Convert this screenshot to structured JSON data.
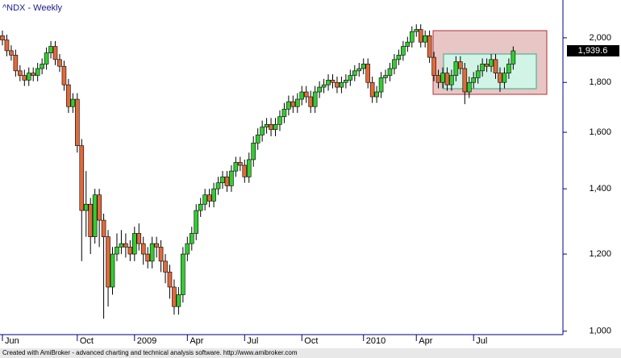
{
  "chart_data": {
    "type": "candlestick",
    "title": "^NDX - Weekly",
    "footer": "Created with AmiBroker - advanced charting and technical analysis software. http://www.amibroker.com",
    "last_price_label": "1,939.6",
    "up_color": "#33cc33",
    "down_color": "#e06a3a",
    "log_scale": true,
    "ylim": [
      992,
      2187
    ],
    "yticks": [
      {
        "value": 1000,
        "label": "1,000"
      },
      {
        "value": 1200,
        "label": "1,200"
      },
      {
        "value": 1400,
        "label": "1,400"
      },
      {
        "value": 1600,
        "label": "1,600"
      },
      {
        "value": 1800,
        "label": "1,800"
      },
      {
        "value": 2000,
        "label": "2,000"
      }
    ],
    "categories": [
      "Jun",
      null,
      null,
      null,
      null,
      null,
      null,
      null,
      null,
      null,
      null,
      null,
      null,
      null,
      null,
      null,
      null,
      "Oct",
      null,
      null,
      null,
      null,
      null,
      null,
      null,
      null,
      null,
      null,
      null,
      null,
      "2009",
      null,
      null,
      null,
      null,
      null,
      null,
      null,
      null,
      null,
      null,
      null,
      "Apr",
      null,
      null,
      null,
      null,
      null,
      null,
      null,
      null,
      null,
      null,
      null,
      null,
      "Jul",
      null,
      null,
      null,
      null,
      null,
      null,
      null,
      null,
      null,
      null,
      null,
      null,
      "Oct",
      null,
      null,
      null,
      null,
      null,
      null,
      null,
      null,
      null,
      null,
      null,
      null,
      null,
      "2010",
      null,
      null,
      null,
      null,
      null,
      null,
      null,
      null,
      null,
      null,
      null,
      "Apr",
      null,
      null,
      null,
      null,
      null,
      null,
      null,
      null,
      null,
      null,
      null,
      null,
      "Jul",
      null,
      null,
      null,
      null,
      null,
      null,
      null,
      null,
      null
    ],
    "open": [
      2010,
      1990,
      1940,
      1920,
      1850,
      1830,
      1810,
      1840,
      1830,
      1860,
      1880,
      1930,
      1960,
      1900,
      1870,
      1790,
      1700,
      1730,
      1550,
      1330,
      1350,
      1250,
      1380,
      1300,
      1250,
      1110,
      1200,
      1220,
      1230,
      1220,
      1200,
      1260,
      1230,
      1200,
      1180,
      1230,
      1220,
      1180,
      1150,
      1110,
      1060,
      1090,
      1200,
      1230,
      1260,
      1330,
      1350,
      1380,
      1360,
      1400,
      1420,
      1440,
      1410,
      1460,
      1490,
      1480,
      1440,
      1500,
      1560,
      1590,
      1620,
      1630,
      1610,
      1630,
      1660,
      1690,
      1720,
      1700,
      1730,
      1760,
      1740,
      1700,
      1760,
      1780,
      1790,
      1810,
      1800,
      1780,
      1800,
      1810,
      1830,
      1850,
      1860,
      1880,
      1800,
      1740,
      1760,
      1820,
      1830,
      1860,
      1900,
      1920,
      1960,
      1980,
      2030,
      2040,
      1980,
      2010,
      1910,
      1830,
      1800,
      1840,
      1790,
      1830,
      1890,
      1860,
      1760,
      1800,
      1820,
      1850,
      1880,
      1870,
      1900,
      1840,
      1800,
      1840,
      1880
    ],
    "high": [
      2035,
      2015,
      1965,
      1945,
      1875,
      1855,
      1865,
      1865,
      1885,
      1905,
      1955,
      1985,
      1985,
      1925,
      1895,
      1815,
      1755,
      1755,
      1575,
      1460,
      1370,
      1400,
      1400,
      1320,
      1270,
      1220,
      1260,
      1270,
      1260,
      1240,
      1280,
      1290,
      1250,
      1220,
      1250,
      1250,
      1240,
      1200,
      1170,
      1130,
      1110,
      1220,
      1250,
      1280,
      1350,
      1370,
      1400,
      1400,
      1420,
      1440,
      1460,
      1460,
      1480,
      1510,
      1510,
      1500,
      1525,
      1585,
      1615,
      1645,
      1655,
      1655,
      1655,
      1685,
      1715,
      1745,
      1745,
      1755,
      1785,
      1785,
      1765,
      1785,
      1805,
      1815,
      1835,
      1835,
      1825,
      1825,
      1835,
      1855,
      1875,
      1885,
      1905,
      1905,
      1825,
      1785,
      1845,
      1855,
      1885,
      1925,
      1945,
      1985,
      2005,
      2055,
      2065,
      2065,
      2035,
      2035,
      1935,
      1855,
      1865,
      1865,
      1855,
      1915,
      1915,
      1885,
      1825,
      1845,
      1875,
      1905,
      1905,
      1925,
      1925,
      1865,
      1865,
      1905,
      1960
    ],
    "low": [
      1965,
      1915,
      1895,
      1825,
      1805,
      1785,
      1785,
      1805,
      1805,
      1835,
      1855,
      1905,
      1875,
      1845,
      1765,
      1675,
      1675,
      1525,
      1180,
      1250,
      1200,
      1230,
      1220,
      1030,
      1060,
      1090,
      1180,
      1200,
      1190,
      1180,
      1180,
      1210,
      1170,
      1160,
      1160,
      1190,
      1150,
      1120,
      1080,
      1040,
      1040,
      1070,
      1180,
      1210,
      1240,
      1310,
      1330,
      1340,
      1340,
      1380,
      1400,
      1390,
      1390,
      1440,
      1460,
      1420,
      1420,
      1475,
      1535,
      1565,
      1595,
      1585,
      1585,
      1605,
      1635,
      1665,
      1675,
      1675,
      1705,
      1715,
      1675,
      1675,
      1735,
      1755,
      1765,
      1775,
      1755,
      1755,
      1775,
      1785,
      1805,
      1825,
      1835,
      1775,
      1715,
      1715,
      1735,
      1795,
      1805,
      1835,
      1875,
      1895,
      1935,
      1955,
      2005,
      1955,
      1955,
      1885,
      1805,
      1775,
      1775,
      1765,
      1765,
      1805,
      1835,
      1710,
      1735,
      1775,
      1795,
      1825,
      1845,
      1845,
      1815,
      1760,
      1775,
      1815,
      1855
    ],
    "close": [
      1990,
      1940,
      1920,
      1850,
      1830,
      1810,
      1840,
      1830,
      1860,
      1880,
      1930,
      1960,
      1900,
      1870,
      1790,
      1700,
      1730,
      1550,
      1330,
      1350,
      1250,
      1380,
      1300,
      1250,
      1110,
      1200,
      1220,
      1230,
      1220,
      1200,
      1260,
      1230,
      1200,
      1180,
      1230,
      1220,
      1180,
      1150,
      1110,
      1060,
      1090,
      1200,
      1230,
      1260,
      1330,
      1350,
      1380,
      1360,
      1400,
      1420,
      1440,
      1410,
      1460,
      1490,
      1480,
      1440,
      1500,
      1560,
      1590,
      1620,
      1630,
      1610,
      1630,
      1660,
      1690,
      1720,
      1700,
      1730,
      1760,
      1740,
      1700,
      1760,
      1780,
      1790,
      1810,
      1800,
      1780,
      1800,
      1810,
      1830,
      1850,
      1860,
      1880,
      1800,
      1740,
      1760,
      1820,
      1830,
      1860,
      1900,
      1920,
      1960,
      1980,
      2030,
      2040,
      1980,
      2010,
      1910,
      1830,
      1800,
      1840,
      1790,
      1830,
      1890,
      1860,
      1760,
      1800,
      1820,
      1850,
      1880,
      1870,
      1900,
      1840,
      1800,
      1840,
      1880,
      1939.6
    ]
  }
}
